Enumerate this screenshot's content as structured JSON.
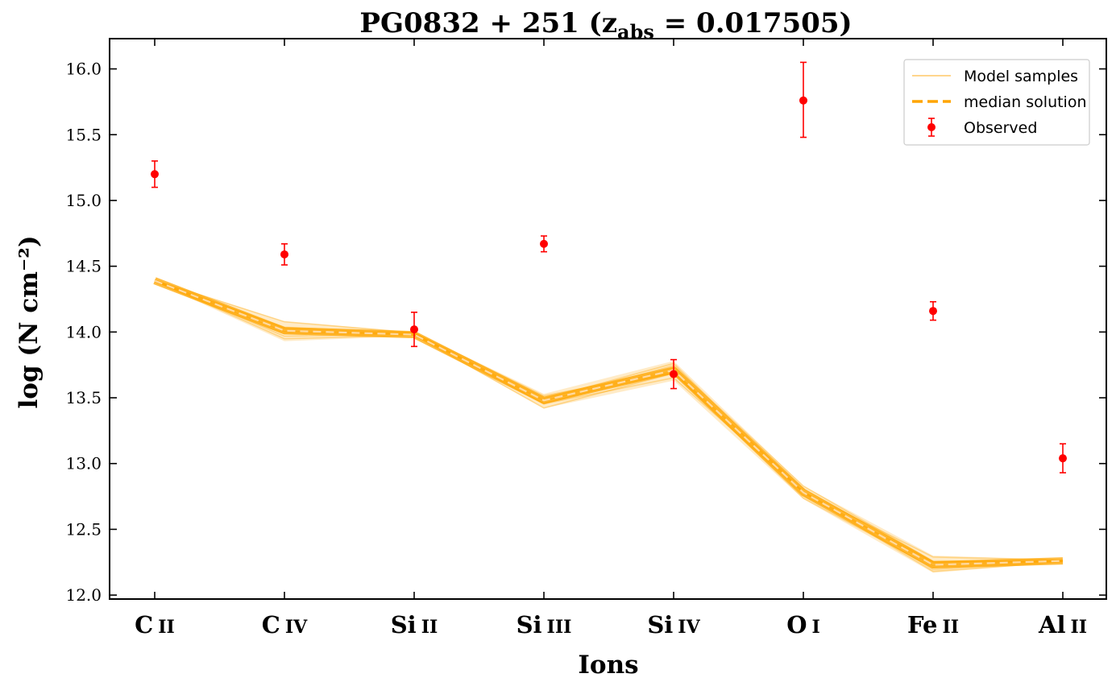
{
  "chart_data": {
    "type": "line",
    "title_main": "PG0832 + 251 (z",
    "title_sub": "abs",
    "title_end": " = 0.017505)",
    "xlabel": "Ions",
    "ylabel": "log (N cm⁻²)",
    "ylim": [
      11.97,
      16.23
    ],
    "yticks": [
      "12.0",
      "12.5",
      "13.0",
      "13.5",
      "14.0",
      "14.5",
      "15.0",
      "15.5",
      "16.0"
    ],
    "categories": [
      {
        "element": "C",
        "stage": "II"
      },
      {
        "element": "C",
        "stage": "IV"
      },
      {
        "element": "Si",
        "stage": "II"
      },
      {
        "element": "Si",
        "stage": "III"
      },
      {
        "element": "Si",
        "stage": "IV"
      },
      {
        "element": "O",
        "stage": "I"
      },
      {
        "element": "Fe",
        "stage": "II"
      },
      {
        "element": "Al",
        "stage": "II"
      }
    ],
    "median_solution": [
      14.39,
      14.01,
      13.98,
      13.48,
      13.71,
      12.78,
      12.23,
      12.26
    ],
    "samples_band_low": [
      14.38,
      13.93,
      13.97,
      13.42,
      13.63,
      12.73,
      12.17,
      12.25
    ],
    "samples_band_high": [
      14.4,
      14.08,
      14.0,
      13.53,
      13.78,
      12.83,
      12.3,
      12.27
    ],
    "observed": [
      {
        "value": 15.2,
        "err_low": 0.1,
        "err_high": 0.1
      },
      {
        "value": 14.59,
        "err_low": 0.08,
        "err_high": 0.08
      },
      {
        "value": 14.02,
        "err_low": 0.13,
        "err_high": 0.13
      },
      {
        "value": 14.67,
        "err_low": 0.06,
        "err_high": 0.06
      },
      {
        "value": 13.68,
        "err_low": 0.11,
        "err_high": 0.11
      },
      {
        "value": 15.76,
        "err_low": 0.28,
        "err_high": 0.29
      },
      {
        "value": 14.16,
        "err_low": 0.07,
        "err_high": 0.07
      },
      {
        "value": 13.04,
        "err_low": 0.11,
        "err_high": 0.11
      }
    ],
    "legend": {
      "position": "top-right",
      "entries": [
        "Model samples",
        "median solution",
        "Observed"
      ]
    },
    "colors": {
      "model_samples": "#ffa500",
      "median": "#ffa500",
      "observed": "#ff0000"
    },
    "grid": false
  }
}
